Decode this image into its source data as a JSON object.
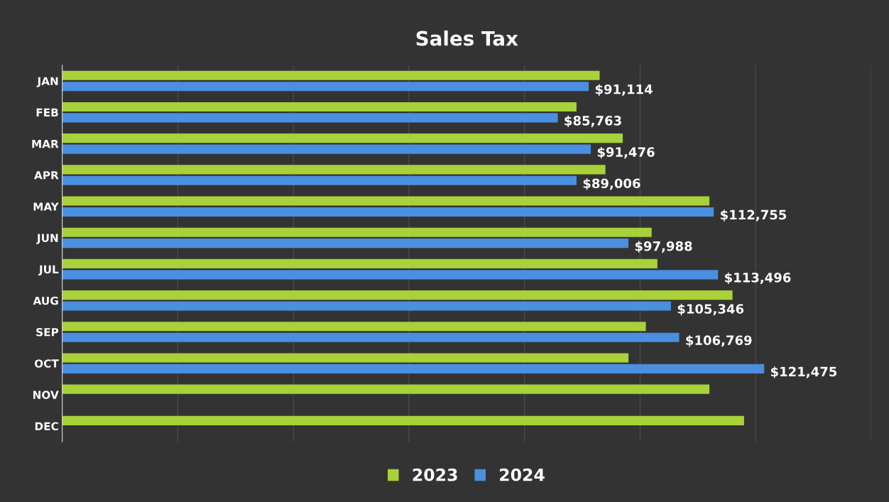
{
  "chart_data": {
    "type": "bar",
    "orientation": "horizontal",
    "title": "Sales Tax",
    "categories": [
      "JAN",
      "FEB",
      "MAR",
      "APR",
      "MAY",
      "JUN",
      "JUL",
      "AUG",
      "SEP",
      "OCT",
      "NOV",
      "DEC"
    ],
    "series": [
      {
        "name": "2023",
        "color": "#a8d13a",
        "values": [
          93000,
          89000,
          97000,
          94000,
          112000,
          102000,
          103000,
          116000,
          101000,
          98000,
          112000,
          118000
        ]
      },
      {
        "name": "2024",
        "color": "#4a8fe0",
        "values": [
          91114,
          85763,
          91476,
          89006,
          112755,
          97988,
          113496,
          105346,
          106769,
          121475,
          null,
          null
        ],
        "value_labels": [
          "$91,114",
          "$85,763",
          "$91,476",
          "$89,006",
          "$112,755",
          "$97,988",
          "$113,496",
          "$105,346",
          "$106,769",
          "$121,475",
          null,
          null
        ]
      }
    ],
    "xlim": [
      0,
      140000
    ],
    "xticks": [
      {
        "value": 0,
        "label": null
      },
      {
        "value": 20000,
        "label": null
      },
      {
        "value": 40000,
        "label": null
      },
      {
        "value": 60000,
        "label": null
      },
      {
        "value": 80000,
        "label": null
      },
      {
        "value": 100000,
        "label": null
      },
      {
        "value": 120000,
        "label": null
      },
      {
        "value": 140000,
        "label": null
      }
    ],
    "tick_labels": "y",
    "grid": "x",
    "legend": "bottom"
  }
}
